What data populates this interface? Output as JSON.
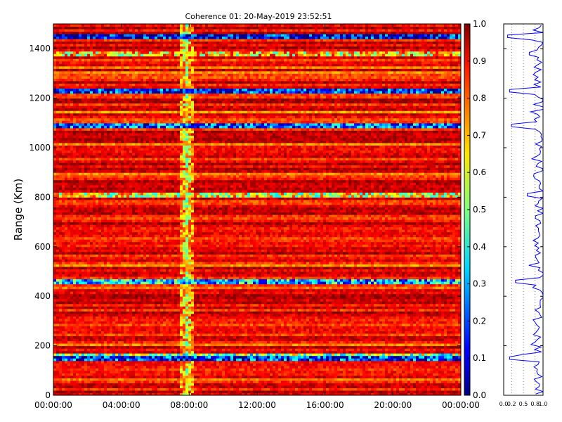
{
  "chart_data": [
    {
      "type": "heatmap",
      "title": "Coherence 01: 20-May-2019 23:52:51",
      "ylabel": "Range (Km)",
      "xlabel": "",
      "x_ticks": [
        "00:00:00",
        "04:00:00",
        "08:00:00",
        "12:00:00",
        "16:00:00",
        "20:00:00",
        "00:00:00"
      ],
      "x_range": [
        "00:00:00",
        "24:00:00"
      ],
      "ylim": [
        0,
        1500
      ],
      "y_ticks": [
        0,
        200,
        400,
        600,
        800,
        1000,
        1200,
        1400
      ],
      "colormap": "jet",
      "colorbar": {
        "range": [
          0.0,
          1.0
        ],
        "ticks": [
          "0.0",
          "0.1",
          "0.2",
          "0.3",
          "0.4",
          "0.5",
          "0.6",
          "0.7",
          "0.8",
          "0.9",
          "1.0"
        ]
      },
      "low_coherence_band": {
        "time": "~07:50",
        "values_approx": [
          0.4,
          0.8
        ]
      },
      "low_coherence_ranges_km": [
        {
          "range": 1450,
          "value": 0.1
        },
        {
          "range": 1380,
          "value": 0.65
        },
        {
          "range": 1230,
          "value": 0.15
        },
        {
          "range": 1090,
          "value": 0.2
        },
        {
          "range": 810,
          "value": 0.6
        },
        {
          "range": 460,
          "value": 0.3
        },
        {
          "range": 165,
          "value": 0.5
        },
        {
          "range": 150,
          "value": 0.15
        }
      ],
      "background_value_approx": 0.88
    },
    {
      "type": "line",
      "description_axis": "mean coherence vs range",
      "x_ticks": [
        "0.0",
        "0.2",
        "0.5",
        "0.8",
        "1.0"
      ],
      "xlim": [
        0.0,
        1.0
      ],
      "ylim": [
        0,
        1500
      ],
      "color": "#0000ff",
      "grid": "vertical dotted"
    }
  ]
}
